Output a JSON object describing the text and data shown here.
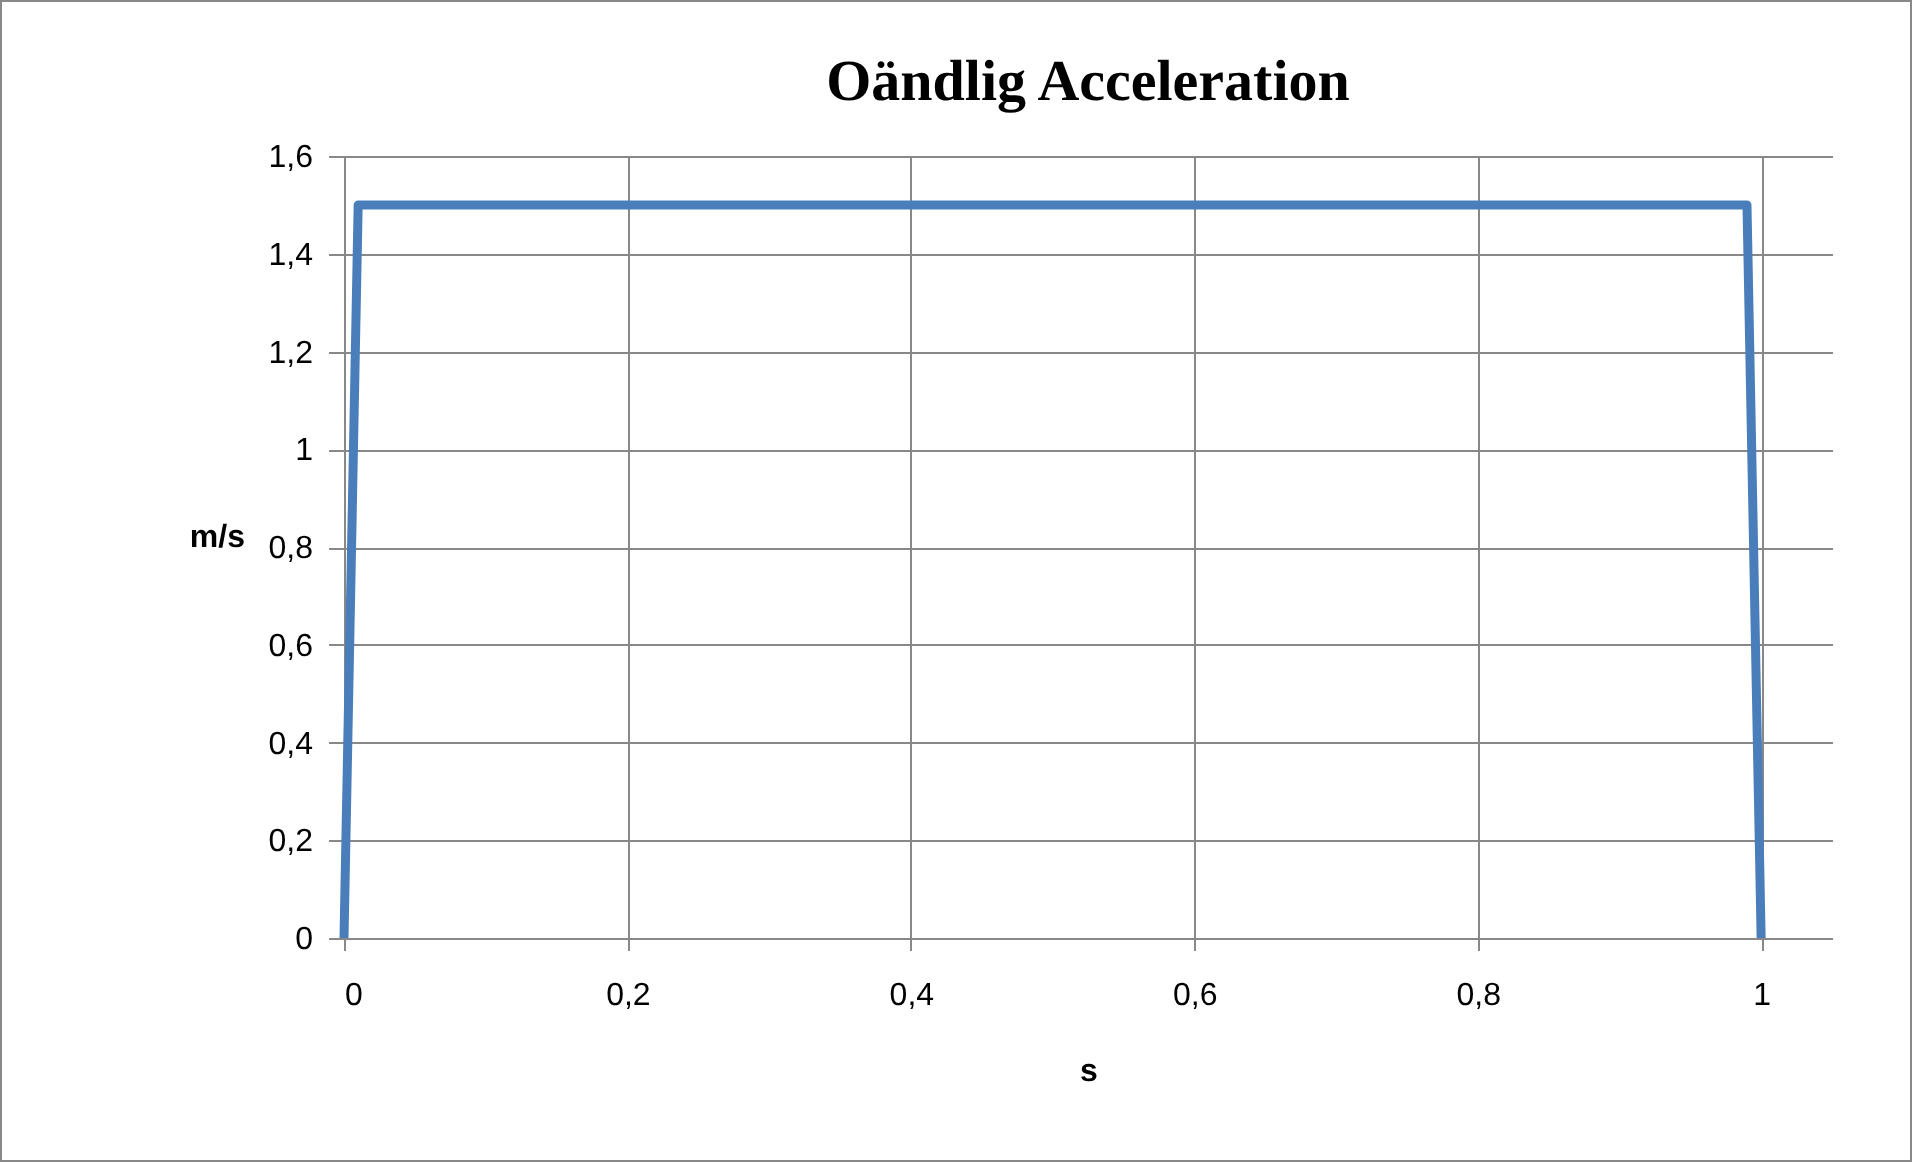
{
  "chart_data": {
    "type": "line",
    "title": "Oändlig Acceleration",
    "xlabel": "s",
    "ylabel": "m/s",
    "x": [
      0,
      0.01,
      0.99,
      1
    ],
    "series": [
      {
        "color": "#4a7ebb",
        "values": [
          0,
          1.5,
          1.5,
          0
        ]
      }
    ],
    "xlim": [
      0,
      1.05
    ],
    "xticks": [
      0,
      {
        "value": 0.2,
        "label": "0,2"
      },
      {
        "value": 0.4,
        "label": "0,4"
      },
      {
        "value": 0.6,
        "label": "0,6"
      },
      {
        "value": 0.8,
        "label": "0,8"
      },
      1
    ],
    "ylim": [
      0,
      1.6
    ],
    "yticks": [
      0,
      {
        "value": 0.2,
        "label": "0,2"
      },
      {
        "value": 0.4,
        "label": "0,4"
      },
      {
        "value": 0.6,
        "label": "0,6"
      },
      {
        "value": 0.8,
        "label": "0,8"
      },
      1,
      {
        "value": 1.2,
        "label": "1,2"
      },
      {
        "value": 1.4,
        "label": "1,4"
      },
      {
        "value": 1.6,
        "label": "1,6"
      }
    ],
    "grid": true,
    "marker": "none",
    "line_style": "solid"
  }
}
